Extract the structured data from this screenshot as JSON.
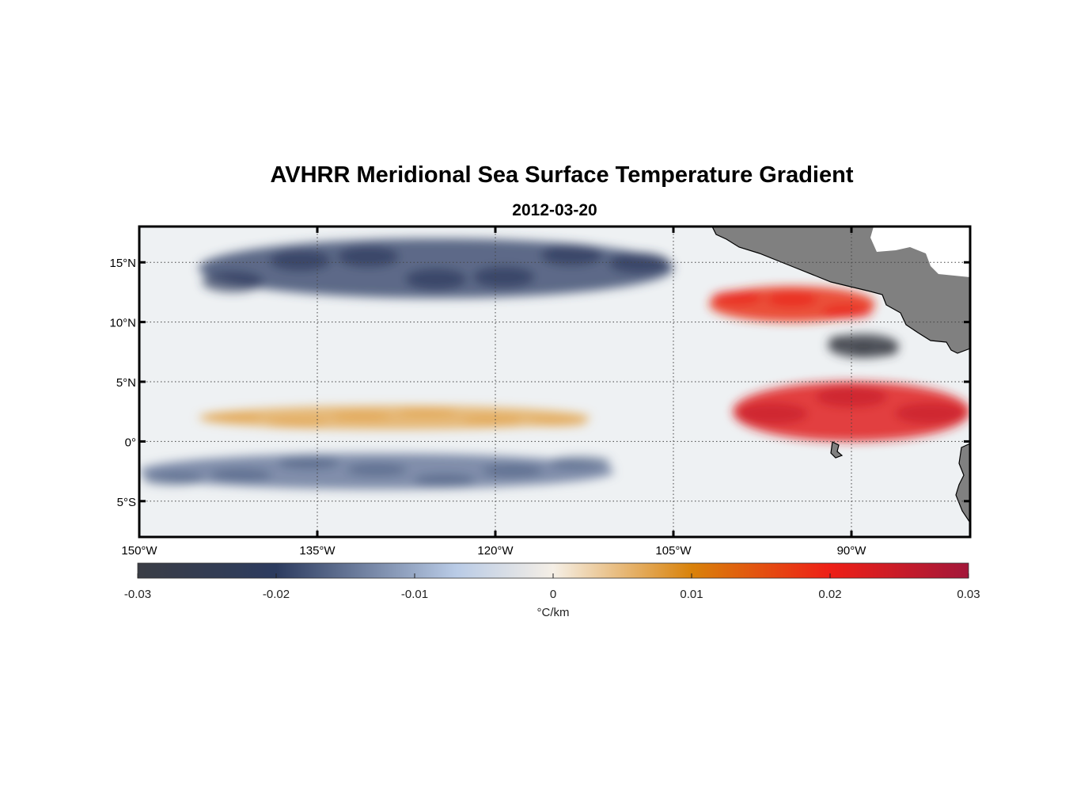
{
  "figure": {
    "title": "AVHRR Meridional Sea Surface Temperature Gradient",
    "date": "2012-03-20"
  },
  "chart_data": {
    "type": "heatmap",
    "title": "AVHRR Meridional Sea Surface Temperature Gradient",
    "subtitle": "2012-03-20",
    "variable": "meridional SST gradient",
    "units": "°C/km",
    "lon_range": [
      -150,
      -80
    ],
    "lat_range": [
      -8,
      18
    ],
    "lon_ticks": [
      {
        "value": -150,
        "label": "150°W"
      },
      {
        "value": -135,
        "label": "135°W"
      },
      {
        "value": -120,
        "label": "120°W"
      },
      {
        "value": -105,
        "label": "105°W"
      },
      {
        "value": -90,
        "label": "90°W"
      }
    ],
    "lat_ticks": [
      {
        "value": 15,
        "label": "15°N"
      },
      {
        "value": 10,
        "label": "10°N"
      },
      {
        "value": 5,
        "label": "5°N"
      },
      {
        "value": 0,
        "label": "0°"
      },
      {
        "value": -5,
        "label": "5°S"
      }
    ],
    "grid": true,
    "colorbar": {
      "range": [
        -0.03,
        0.03
      ],
      "ticks": [
        -0.03,
        -0.02,
        -0.01,
        0,
        0.01,
        0.02,
        0.03
      ],
      "tick_labels": [
        "-0.03",
        "-0.02",
        "-0.01",
        "0",
        "0.01",
        "0.02",
        "0.03"
      ],
      "label": "°C/km",
      "colors": [
        "#3a3d45",
        "#2c3b5f",
        "#b9cbe6",
        "#f5efe6",
        "#d9820a",
        "#ee1f16",
        "#a3173a"
      ],
      "stops": [
        -0.03,
        -0.02,
        -0.007,
        0,
        0.01,
        0.02,
        0.03
      ]
    },
    "features": [
      {
        "name": "warm band",
        "lon": [
          -145,
          -112
        ],
        "lat": [
          1,
          3
        ],
        "value": 0.006
      },
      {
        "name": "cold band",
        "lon": [
          -150,
          -110
        ],
        "lat": [
          -4,
          -1
        ],
        "value": -0.014
      },
      {
        "name": "cold band north",
        "lon": [
          -145,
          -105
        ],
        "lat": [
          12,
          17
        ],
        "value": -0.018
      },
      {
        "name": "strong warm front",
        "lon": [
          -100,
          -80
        ],
        "lat": [
          0,
          5
        ],
        "value": 0.022
      },
      {
        "name": "warm Central American coast",
        "lon": [
          -102,
          -88
        ],
        "lat": [
          10,
          13
        ],
        "value": 0.018
      },
      {
        "name": "cold Papagayo region",
        "lon": [
          -92,
          -86
        ],
        "lat": [
          7,
          9
        ],
        "value": -0.03
      }
    ],
    "land_color": "#808080"
  }
}
